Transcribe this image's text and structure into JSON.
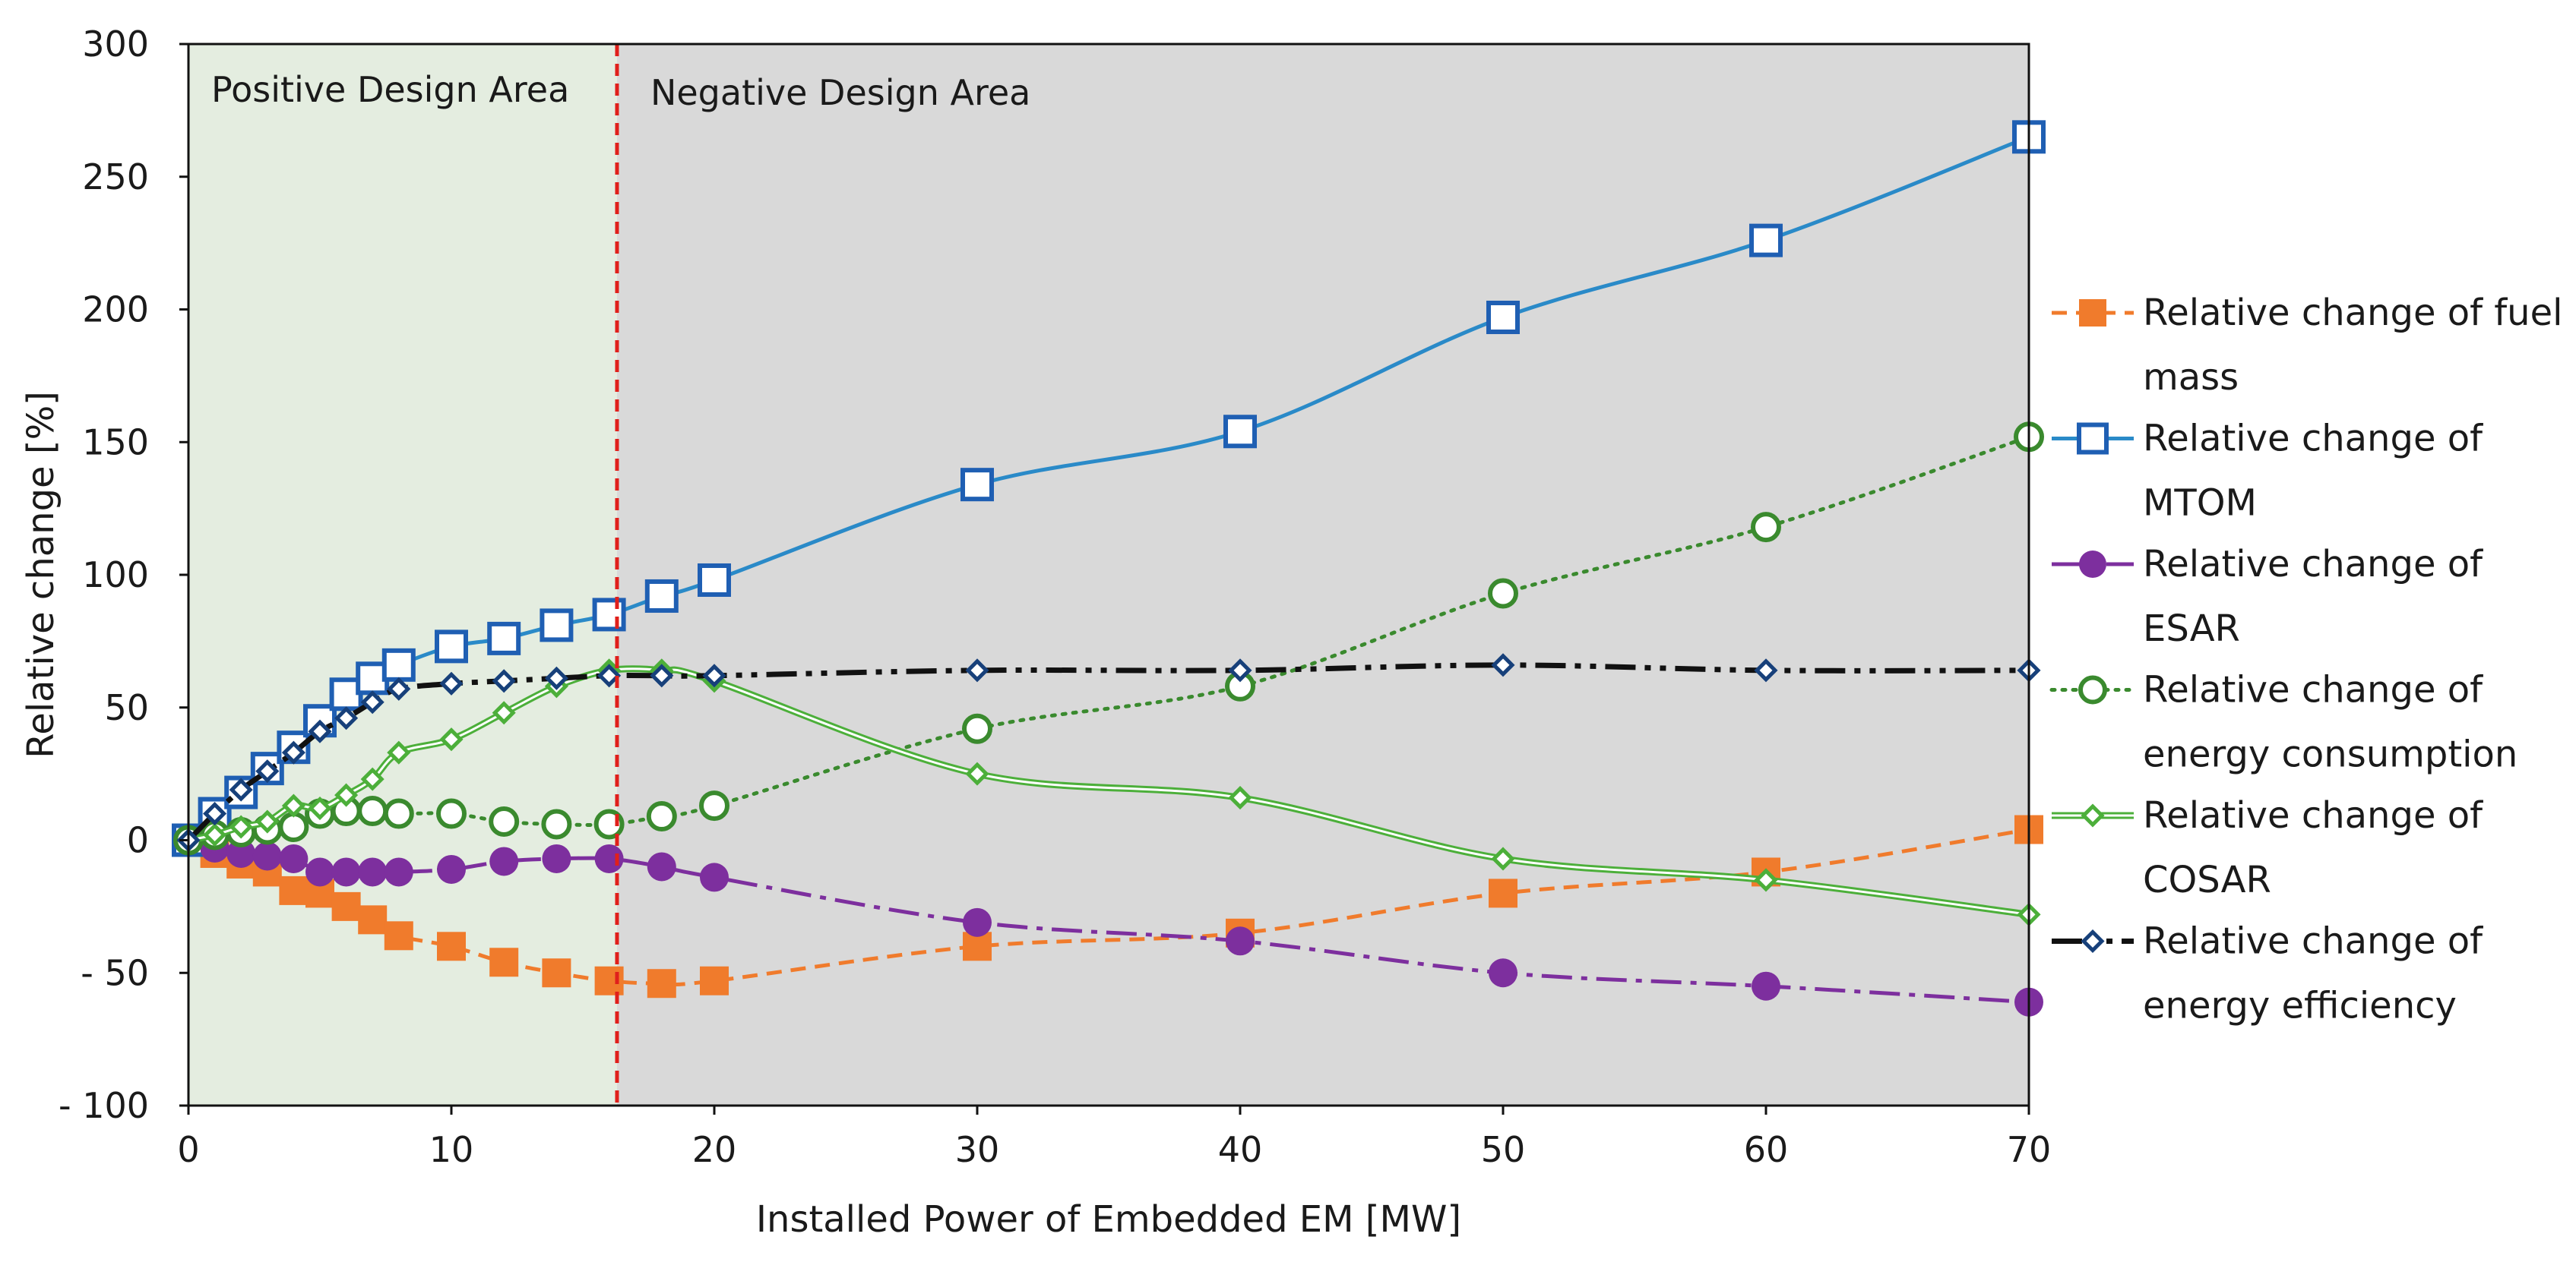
{
  "chart_data": {
    "type": "line",
    "title": "",
    "xlabel": "Installed Power of Embedded EM [MW]",
    "ylabel": "Relative change [%]",
    "xlim": [
      0,
      70
    ],
    "ylim": [
      -100,
      300
    ],
    "x_ticks": [
      0,
      10,
      20,
      30,
      40,
      50,
      60,
      70
    ],
    "y_ticks": [
      -100,
      -50,
      0,
      50,
      100,
      150,
      200,
      250,
      300
    ],
    "y_tick_labels": [
      "- 100",
      "- 50",
      "0",
      "50",
      "100",
      "150",
      "200",
      "250",
      "300"
    ],
    "grid": false,
    "legend_position": "right",
    "regions": [
      {
        "name": "positive",
        "label": "Positive Design Area",
        "x_range": [
          0,
          16.3
        ],
        "color": "#e4ede0"
      },
      {
        "name": "negative",
        "label": "Negative Design Area",
        "x_range": [
          16.3,
          70
        ],
        "color": "#d9d9d9"
      }
    ],
    "divider": {
      "x": 16.3,
      "color": "#e0201b"
    },
    "series": [
      {
        "name": "Relative change of fuel mass",
        "legend_lines": [
          "Relative change of fuel",
          "mass"
        ],
        "color": "#f07b2c",
        "marker": "square-filled",
        "line": "dashed",
        "points": [
          [
            0,
            0
          ],
          [
            1,
            -5
          ],
          [
            2,
            -9
          ],
          [
            3,
            -12
          ],
          [
            4,
            -19
          ],
          [
            5,
            -20
          ],
          [
            6,
            -25
          ],
          [
            7,
            -30
          ],
          [
            8,
            -36
          ],
          [
            10,
            -40
          ],
          [
            12,
            -46
          ],
          [
            14,
            -50
          ],
          [
            16,
            -53
          ],
          [
            18,
            -54
          ],
          [
            20,
            -53
          ],
          [
            30,
            -40
          ],
          [
            40,
            -35
          ],
          [
            50,
            -20
          ],
          [
            60,
            -12
          ],
          [
            70,
            4
          ]
        ]
      },
      {
        "name": "Relative change of MTOM",
        "legend_lines": [
          "Relative change of",
          "MTOM"
        ],
        "color": "#2a8ac8",
        "marker_color": "#1f5fb3",
        "marker": "square-open",
        "line": "solid",
        "points": [
          [
            0,
            0
          ],
          [
            1,
            10
          ],
          [
            2,
            18
          ],
          [
            3,
            27
          ],
          [
            4,
            35
          ],
          [
            5,
            45
          ],
          [
            6,
            55
          ],
          [
            7,
            61
          ],
          [
            8,
            66
          ],
          [
            10,
            73
          ],
          [
            12,
            76
          ],
          [
            14,
            81
          ],
          [
            16,
            85
          ],
          [
            18,
            92
          ],
          [
            20,
            98
          ],
          [
            30,
            134
          ],
          [
            40,
            154
          ],
          [
            50,
            197
          ],
          [
            60,
            226
          ],
          [
            70,
            265
          ]
        ]
      },
      {
        "name": "Relative change of ESAR",
        "legend_lines": [
          "Relative change of",
          "ESAR"
        ],
        "color": "#7d2f9e",
        "marker": "circle-filled",
        "line": "dashdot",
        "points": [
          [
            0,
            0
          ],
          [
            1,
            -3
          ],
          [
            2,
            -5
          ],
          [
            3,
            -6
          ],
          [
            4,
            -7
          ],
          [
            5,
            -12
          ],
          [
            6,
            -12
          ],
          [
            7,
            -12
          ],
          [
            8,
            -12
          ],
          [
            10,
            -11
          ],
          [
            12,
            -8
          ],
          [
            14,
            -7
          ],
          [
            16,
            -7
          ],
          [
            18,
            -10
          ],
          [
            20,
            -14
          ],
          [
            30,
            -31
          ],
          [
            40,
            -38
          ],
          [
            50,
            -50
          ],
          [
            60,
            -55
          ],
          [
            70,
            -61
          ]
        ]
      },
      {
        "name": "Relative change of energy consumption",
        "legend_lines": [
          "Relative change of",
          "energy consumption"
        ],
        "color": "#3a8a2e",
        "marker": "circle-open",
        "line": "dotted",
        "points": [
          [
            0,
            0
          ],
          [
            1,
            2
          ],
          [
            2,
            3
          ],
          [
            3,
            4
          ],
          [
            4,
            5
          ],
          [
            5,
            10
          ],
          [
            6,
            11
          ],
          [
            7,
            11
          ],
          [
            8,
            10
          ],
          [
            10,
            10
          ],
          [
            12,
            7
          ],
          [
            14,
            6
          ],
          [
            16,
            6
          ],
          [
            18,
            9
          ],
          [
            20,
            13
          ],
          [
            30,
            42
          ],
          [
            40,
            58
          ],
          [
            50,
            93
          ],
          [
            60,
            118
          ],
          [
            70,
            152
          ]
        ]
      },
      {
        "name": "Relative change of COSAR",
        "legend_lines": [
          "Relative change of",
          "COSAR"
        ],
        "color": "#4caf3a",
        "marker": "diamond-open",
        "line": "double",
        "points": [
          [
            0,
            0
          ],
          [
            1,
            2
          ],
          [
            2,
            5
          ],
          [
            3,
            7
          ],
          [
            4,
            13
          ],
          [
            5,
            12
          ],
          [
            6,
            17
          ],
          [
            7,
            23
          ],
          [
            8,
            33
          ],
          [
            10,
            38
          ],
          [
            12,
            48
          ],
          [
            14,
            58
          ],
          [
            16,
            64
          ],
          [
            18,
            64
          ],
          [
            20,
            60
          ],
          [
            30,
            25
          ],
          [
            40,
            16
          ],
          [
            50,
            -7
          ],
          [
            60,
            -15
          ],
          [
            70,
            -28
          ]
        ]
      },
      {
        "name": "Relative change of energy efficiency",
        "legend_lines": [
          "Relative change of",
          "energy efficiency"
        ],
        "color": "#111111",
        "marker_color": "#17407a",
        "marker": "diamond-open",
        "line": "dashdotdot",
        "points": [
          [
            0,
            0
          ],
          [
            1,
            10
          ],
          [
            2,
            19
          ],
          [
            3,
            26
          ],
          [
            4,
            33
          ],
          [
            5,
            41
          ],
          [
            6,
            46
          ],
          [
            7,
            52
          ],
          [
            8,
            57
          ],
          [
            10,
            59
          ],
          [
            12,
            60
          ],
          [
            14,
            61
          ],
          [
            16,
            62
          ],
          [
            18,
            62
          ],
          [
            20,
            62
          ],
          [
            30,
            64
          ],
          [
            40,
            64
          ],
          [
            50,
            66
          ],
          [
            60,
            64
          ],
          [
            70,
            64
          ]
        ]
      }
    ]
  }
}
